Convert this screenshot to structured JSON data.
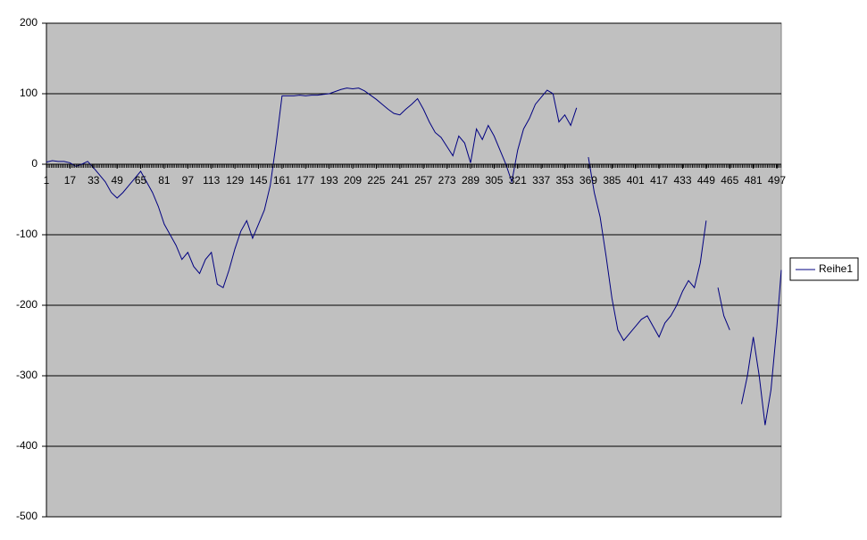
{
  "chart_data": {
    "type": "line",
    "x": [
      1,
      5,
      9,
      13,
      17,
      21,
      25,
      29,
      33,
      37,
      41,
      45,
      49,
      53,
      57,
      61,
      65,
      69,
      73,
      77,
      81,
      85,
      89,
      93,
      97,
      101,
      105,
      109,
      113,
      117,
      121,
      125,
      129,
      133,
      137,
      141,
      145,
      149,
      153,
      157,
      161,
      165,
      169,
      173,
      177,
      181,
      185,
      189,
      193,
      197,
      201,
      205,
      209,
      213,
      217,
      221,
      225,
      229,
      233,
      237,
      241,
      245,
      249,
      253,
      257,
      261,
      265,
      269,
      273,
      277,
      281,
      285,
      289,
      293,
      297,
      301,
      305,
      309,
      313,
      317,
      321,
      325,
      329,
      333,
      337,
      341,
      345,
      349,
      353,
      357,
      361,
      365,
      369,
      373,
      377,
      381,
      385,
      389,
      393,
      397,
      401,
      405,
      409,
      413,
      417,
      421,
      425,
      429,
      433,
      437,
      441,
      445,
      449,
      453,
      457,
      461,
      465,
      469,
      473,
      477,
      481,
      485,
      489,
      493,
      497,
      500
    ],
    "series": [
      {
        "name": "Reihe1",
        "color": "#000080",
        "values": [
          3,
          5,
          4,
          4,
          2,
          -3,
          0,
          4,
          -5,
          -15,
          -25,
          -40,
          -48,
          -40,
          -30,
          -20,
          -10,
          -25,
          -40,
          -60,
          -85,
          -100,
          -115,
          -135,
          -125,
          -145,
          -155,
          -135,
          -125,
          -170,
          -175,
          -150,
          -120,
          -95,
          -80,
          -105,
          -85,
          -65,
          -30,
          30,
          97,
          97,
          97,
          98,
          97,
          98,
          98,
          99,
          100,
          103,
          106,
          108,
          107,
          108,
          104,
          98,
          92,
          85,
          78,
          72,
          70,
          78,
          85,
          93,
          78,
          60,
          45,
          38,
          25,
          12,
          40,
          30,
          2,
          50,
          35,
          55,
          40,
          20,
          0,
          -25,
          20,
          50,
          65,
          85,
          95,
          105,
          100,
          60,
          70,
          55,
          80,
          null,
          10,
          -40,
          -75,
          -130,
          -190,
          -235,
          -250,
          -240,
          -230,
          -220,
          -215,
          -230,
          -245,
          -225,
          -215,
          -200,
          -180,
          -165,
          -175,
          -140,
          -80,
          null,
          -175,
          -215,
          -235,
          null,
          -340,
          -300,
          -245,
          -300,
          -370,
          -320,
          -230,
          -150
        ]
      }
    ],
    "xlim": [
      1,
      500
    ],
    "xticks": [
      1,
      17,
      33,
      49,
      65,
      81,
      97,
      113,
      129,
      145,
      161,
      177,
      193,
      209,
      225,
      241,
      257,
      273,
      289,
      305,
      321,
      337,
      353,
      369,
      385,
      401,
      417,
      433,
      449,
      465,
      481,
      497
    ],
    "ylim": [
      -500,
      200
    ],
    "yticks": [
      -500,
      -400,
      -300,
      -200,
      -100,
      0,
      100,
      200
    ],
    "grid": true,
    "legend": "right"
  }
}
